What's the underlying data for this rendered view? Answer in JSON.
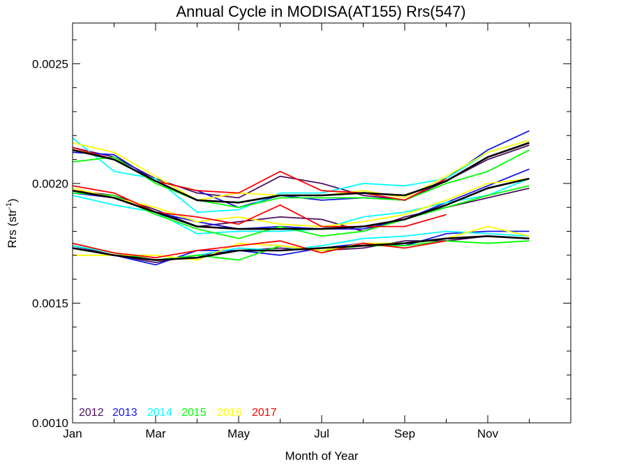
{
  "chart_data": {
    "type": "line",
    "title": "Annual Cycle in MODISA(AT155) Rrs(547)",
    "xlabel": "Month of Year",
    "ylabel_main": "Rrs (str",
    "ylabel_sup": "-1",
    "ylabel_close": ")",
    "xlim": [
      1,
      13
    ],
    "ylim": [
      0.001,
      0.00267
    ],
    "x_ticks": [
      {
        "value": 1,
        "label": "Jan"
      },
      {
        "value": 3,
        "label": "Mar"
      },
      {
        "value": 5,
        "label": "May"
      },
      {
        "value": 7,
        "label": "Jul"
      },
      {
        "value": 9,
        "label": "Sep"
      },
      {
        "value": 11,
        "label": "Nov"
      }
    ],
    "y_ticks": [
      {
        "value": 0.001,
        "label": "0.0010"
      },
      {
        "value": 0.0015,
        "label": "0.0015"
      },
      {
        "value": 0.002,
        "label": "0.0020"
      },
      {
        "value": 0.0025,
        "label": "0.0025"
      }
    ],
    "legend": [
      {
        "label": "2012",
        "color": "#4b0f5e"
      },
      {
        "label": "2013",
        "color": "#1414e6"
      },
      {
        "label": "2014",
        "color": "#00ffff"
      },
      {
        "label": "2015",
        "color": "#00ff00"
      },
      {
        "label": "2016",
        "color": "#ffff00"
      },
      {
        "label": "2017",
        "color": "#ff0000"
      }
    ],
    "x": [
      1,
      2,
      3,
      4,
      5,
      6,
      7,
      8,
      9,
      10,
      11,
      12
    ],
    "groups": [
      {
        "series": [
          {
            "year": "2012",
            "color": "#4b0f5e",
            "values": [
              0.00215,
              0.00211,
              0.00202,
              0.00196,
              0.00194,
              0.00203,
              0.002,
              0.00195,
              0.00193,
              0.00201,
              0.0021,
              0.00216
            ]
          },
          {
            "year": "2013",
            "color": "#1414e6",
            "values": [
              0.00213,
              0.00212,
              0.00201,
              0.00197,
              0.0019,
              0.00195,
              0.00193,
              0.00194,
              0.00193,
              0.00202,
              0.00214,
              0.00222
            ]
          },
          {
            "year": "2014",
            "color": "#00ffff",
            "values": [
              0.00219,
              0.00205,
              0.00202,
              0.00188,
              0.00189,
              0.00196,
              0.00196,
              0.002,
              0.00199,
              0.00202,
              0.00213,
              0.00218
            ]
          },
          {
            "year": "2015",
            "color": "#00ff00",
            "values": [
              0.00209,
              0.00211,
              0.002,
              0.00193,
              0.0019,
              0.00194,
              0.00194,
              0.00194,
              0.00193,
              0.002,
              0.00205,
              0.00214
            ]
          },
          {
            "year": "2016",
            "color": "#ffff00",
            "values": [
              0.00217,
              0.00213,
              0.00203,
              0.00193,
              0.00196,
              0.00195,
              0.00195,
              0.00197,
              0.00194,
              0.00203,
              0.00213,
              0.00218
            ]
          },
          {
            "year": "2017",
            "color": "#ff0000",
            "values": [
              0.00215,
              0.0021,
              0.00201,
              0.00197,
              0.00196,
              0.00205,
              0.00197,
              0.00196,
              0.00193,
              0.00202,
              null,
              null
            ]
          },
          {
            "year": "mean",
            "color": "#000000",
            "values": [
              0.00214,
              0.0021,
              0.00201,
              0.00193,
              0.00192,
              0.00195,
              0.00195,
              0.00196,
              0.00195,
              0.00201,
              0.00211,
              0.00217
            ]
          }
        ]
      },
      {
        "series": [
          {
            "year": "2012",
            "color": "#4b0f5e",
            "values": [
              0.00197,
              0.00195,
              0.00189,
              0.00182,
              0.00184,
              0.00186,
              0.00185,
              0.0018,
              0.00186,
              0.0019,
              0.00194,
              0.00198
            ]
          },
          {
            "year": "2013",
            "color": "#1414e6",
            "values": [
              0.00196,
              0.00194,
              0.00188,
              0.00184,
              0.00181,
              0.00182,
              0.00181,
              0.00181,
              0.00185,
              0.00192,
              0.00199,
              0.00206
            ]
          },
          {
            "year": "2014",
            "color": "#00ffff",
            "values": [
              0.00195,
              0.00191,
              0.00188,
              0.00179,
              0.0018,
              0.0018,
              0.00181,
              0.00186,
              0.00188,
              0.00192,
              0.00195,
              0.00202
            ]
          },
          {
            "year": "2015",
            "color": "#00ff00",
            "values": [
              0.00196,
              0.00195,
              0.00187,
              0.00181,
              0.00177,
              0.00182,
              0.00178,
              0.0018,
              0.00185,
              0.0019,
              0.00195,
              0.00199
            ]
          },
          {
            "year": "2016",
            "color": "#ffff00",
            "values": [
              0.00198,
              0.00194,
              0.0019,
              0.00184,
              0.00186,
              0.00183,
              0.00182,
              0.00184,
              0.00187,
              0.00193,
              0.002,
              0.00202
            ]
          },
          {
            "year": "2017",
            "color": "#ff0000",
            "values": [
              0.00199,
              0.00196,
              0.00188,
              0.00186,
              0.00183,
              0.00191,
              0.00182,
              0.00182,
              0.00182,
              0.00187,
              null,
              null
            ]
          },
          {
            "year": "mean",
            "color": "#000000",
            "values": [
              0.00197,
              0.00194,
              0.00188,
              0.00182,
              0.00181,
              0.00181,
              0.00181,
              0.00182,
              0.00185,
              0.00191,
              0.00198,
              0.00202
            ]
          }
        ]
      },
      {
        "series": [
          {
            "year": "2012",
            "color": "#4b0f5e",
            "values": [
              0.00174,
              0.0017,
              0.00167,
              0.0017,
              0.00172,
              0.00173,
              0.00172,
              0.00173,
              0.00176,
              0.00176,
              0.00178,
              0.00177
            ]
          },
          {
            "year": "2013",
            "color": "#1414e6",
            "values": [
              0.00173,
              0.0017,
              0.00166,
              0.00172,
              0.00172,
              0.0017,
              0.00173,
              0.00175,
              0.00174,
              0.00179,
              0.0018,
              0.0018
            ]
          },
          {
            "year": "2014",
            "color": "#00ffff",
            "values": [
              0.00174,
              0.00171,
              0.00168,
              0.0017,
              0.00173,
              0.00172,
              0.00174,
              0.00177,
              0.00178,
              0.0018,
              0.00179,
              0.00178
            ]
          },
          {
            "year": "2015",
            "color": "#00ff00",
            "values": [
              0.00175,
              0.00171,
              0.00168,
              0.0017,
              0.00168,
              0.00174,
              0.00172,
              0.00174,
              0.00174,
              0.00176,
              0.00175,
              0.00176
            ]
          },
          {
            "year": "2016",
            "color": "#ffff00",
            "values": [
              0.0017,
              0.0017,
              0.0017,
              0.00168,
              0.00175,
              0.00174,
              0.00172,
              0.00175,
              0.00175,
              0.00177,
              0.00182,
              0.00178
            ]
          },
          {
            "year": "2017",
            "color": "#ff0000",
            "values": [
              0.00175,
              0.00171,
              0.00169,
              0.00172,
              0.00174,
              0.00176,
              0.00171,
              0.00175,
              0.00173,
              0.00176,
              null,
              null
            ]
          },
          {
            "year": "mean",
            "color": "#000000",
            "values": [
              0.00173,
              0.0017,
              0.00168,
              0.00169,
              0.00172,
              0.00172,
              0.00173,
              0.00174,
              0.00175,
              0.00177,
              0.00178,
              0.00177
            ]
          }
        ]
      }
    ]
  }
}
